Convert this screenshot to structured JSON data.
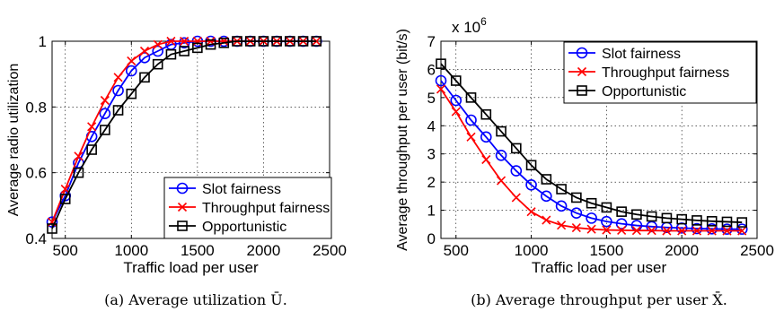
{
  "chart_data": [
    {
      "type": "line",
      "title": "",
      "xlabel": "Traffic load per user",
      "ylabel": "Average radio utilization",
      "caption": "(a) Average utilization Ū.",
      "xlim": [
        400,
        2500
      ],
      "ylim": [
        0.4,
        1.0
      ],
      "xticks": [
        500,
        1000,
        1500,
        2000,
        2500
      ],
      "yticks": [
        0.4,
        0.6,
        0.8,
        1.0
      ],
      "yticklabels": [
        "0.4",
        "0.6",
        "0.8",
        "1"
      ],
      "grid": true,
      "legend_position": "bottom-right",
      "x": [
        400,
        500,
        600,
        700,
        800,
        900,
        1000,
        1100,
        1200,
        1300,
        1400,
        1500,
        1600,
        1700,
        1800,
        1900,
        2000,
        2100,
        2200,
        2300,
        2400
      ],
      "series": [
        {
          "name": "Slot fairness",
          "color": "#0000ff",
          "marker": "circle",
          "values": [
            0.45,
            0.53,
            0.63,
            0.71,
            0.78,
            0.85,
            0.91,
            0.95,
            0.97,
            0.99,
            0.995,
            1.0,
            1.0,
            1.0,
            1.0,
            1.0,
            1.0,
            1.0,
            1.0,
            1.0,
            1.0
          ]
        },
        {
          "name": "Throughput fairness",
          "color": "#ff0000",
          "marker": "x",
          "values": [
            0.45,
            0.55,
            0.65,
            0.74,
            0.82,
            0.89,
            0.94,
            0.97,
            0.99,
            1.0,
            1.0,
            1.0,
            1.0,
            1.0,
            1.0,
            1.0,
            1.0,
            1.0,
            1.0,
            1.0,
            1.0
          ]
        },
        {
          "name": "Opportunistic",
          "color": "#000000",
          "marker": "square",
          "values": [
            0.43,
            0.52,
            0.6,
            0.67,
            0.73,
            0.79,
            0.84,
            0.89,
            0.93,
            0.96,
            0.97,
            0.98,
            0.99,
            0.995,
            1.0,
            1.0,
            1.0,
            1.0,
            1.0,
            1.0,
            1.0
          ]
        }
      ]
    },
    {
      "type": "line",
      "title": "",
      "xlabel": "Traffic load per user",
      "ylabel": "Average throughput per user (bit/s)",
      "caption": "(b) Average throughput per user X̄.",
      "exponent_label": "x 10",
      "exponent_power": "6",
      "xlim": [
        400,
        2500
      ],
      "ylim": [
        0,
        7
      ],
      "xticks": [
        500,
        1000,
        1500,
        2000,
        2500
      ],
      "yticks": [
        0,
        1,
        2,
        3,
        4,
        5,
        6,
        7
      ],
      "yticklabels": [
        "0",
        "1",
        "2",
        "3",
        "4",
        "5",
        "6",
        "7"
      ],
      "grid": true,
      "legend_position": "top-right",
      "x": [
        400,
        500,
        600,
        700,
        800,
        900,
        1000,
        1100,
        1200,
        1300,
        1400,
        1500,
        1600,
        1700,
        1800,
        1900,
        2000,
        2100,
        2200,
        2300,
        2400
      ],
      "series": [
        {
          "name": "Slot fairness",
          "color": "#0000ff",
          "marker": "circle",
          "values": [
            5.6,
            4.9,
            4.2,
            3.6,
            2.95,
            2.4,
            1.9,
            1.5,
            1.15,
            0.9,
            0.72,
            0.6,
            0.52,
            0.46,
            0.42,
            0.39,
            0.37,
            0.35,
            0.34,
            0.33,
            0.33
          ]
        },
        {
          "name": "Throughput fairness",
          "color": "#ff0000",
          "marker": "x",
          "values": [
            5.3,
            4.5,
            3.6,
            2.8,
            2.05,
            1.45,
            0.95,
            0.65,
            0.47,
            0.38,
            0.33,
            0.3,
            0.29,
            0.28,
            0.28,
            0.27,
            0.27,
            0.27,
            0.27,
            0.27,
            0.27
          ]
        },
        {
          "name": "Opportunistic",
          "color": "#000000",
          "marker": "square",
          "values": [
            6.2,
            5.6,
            5.0,
            4.4,
            3.8,
            3.2,
            2.6,
            2.1,
            1.75,
            1.45,
            1.25,
            1.1,
            0.95,
            0.85,
            0.78,
            0.72,
            0.68,
            0.64,
            0.61,
            0.59,
            0.57
          ]
        }
      ]
    }
  ]
}
